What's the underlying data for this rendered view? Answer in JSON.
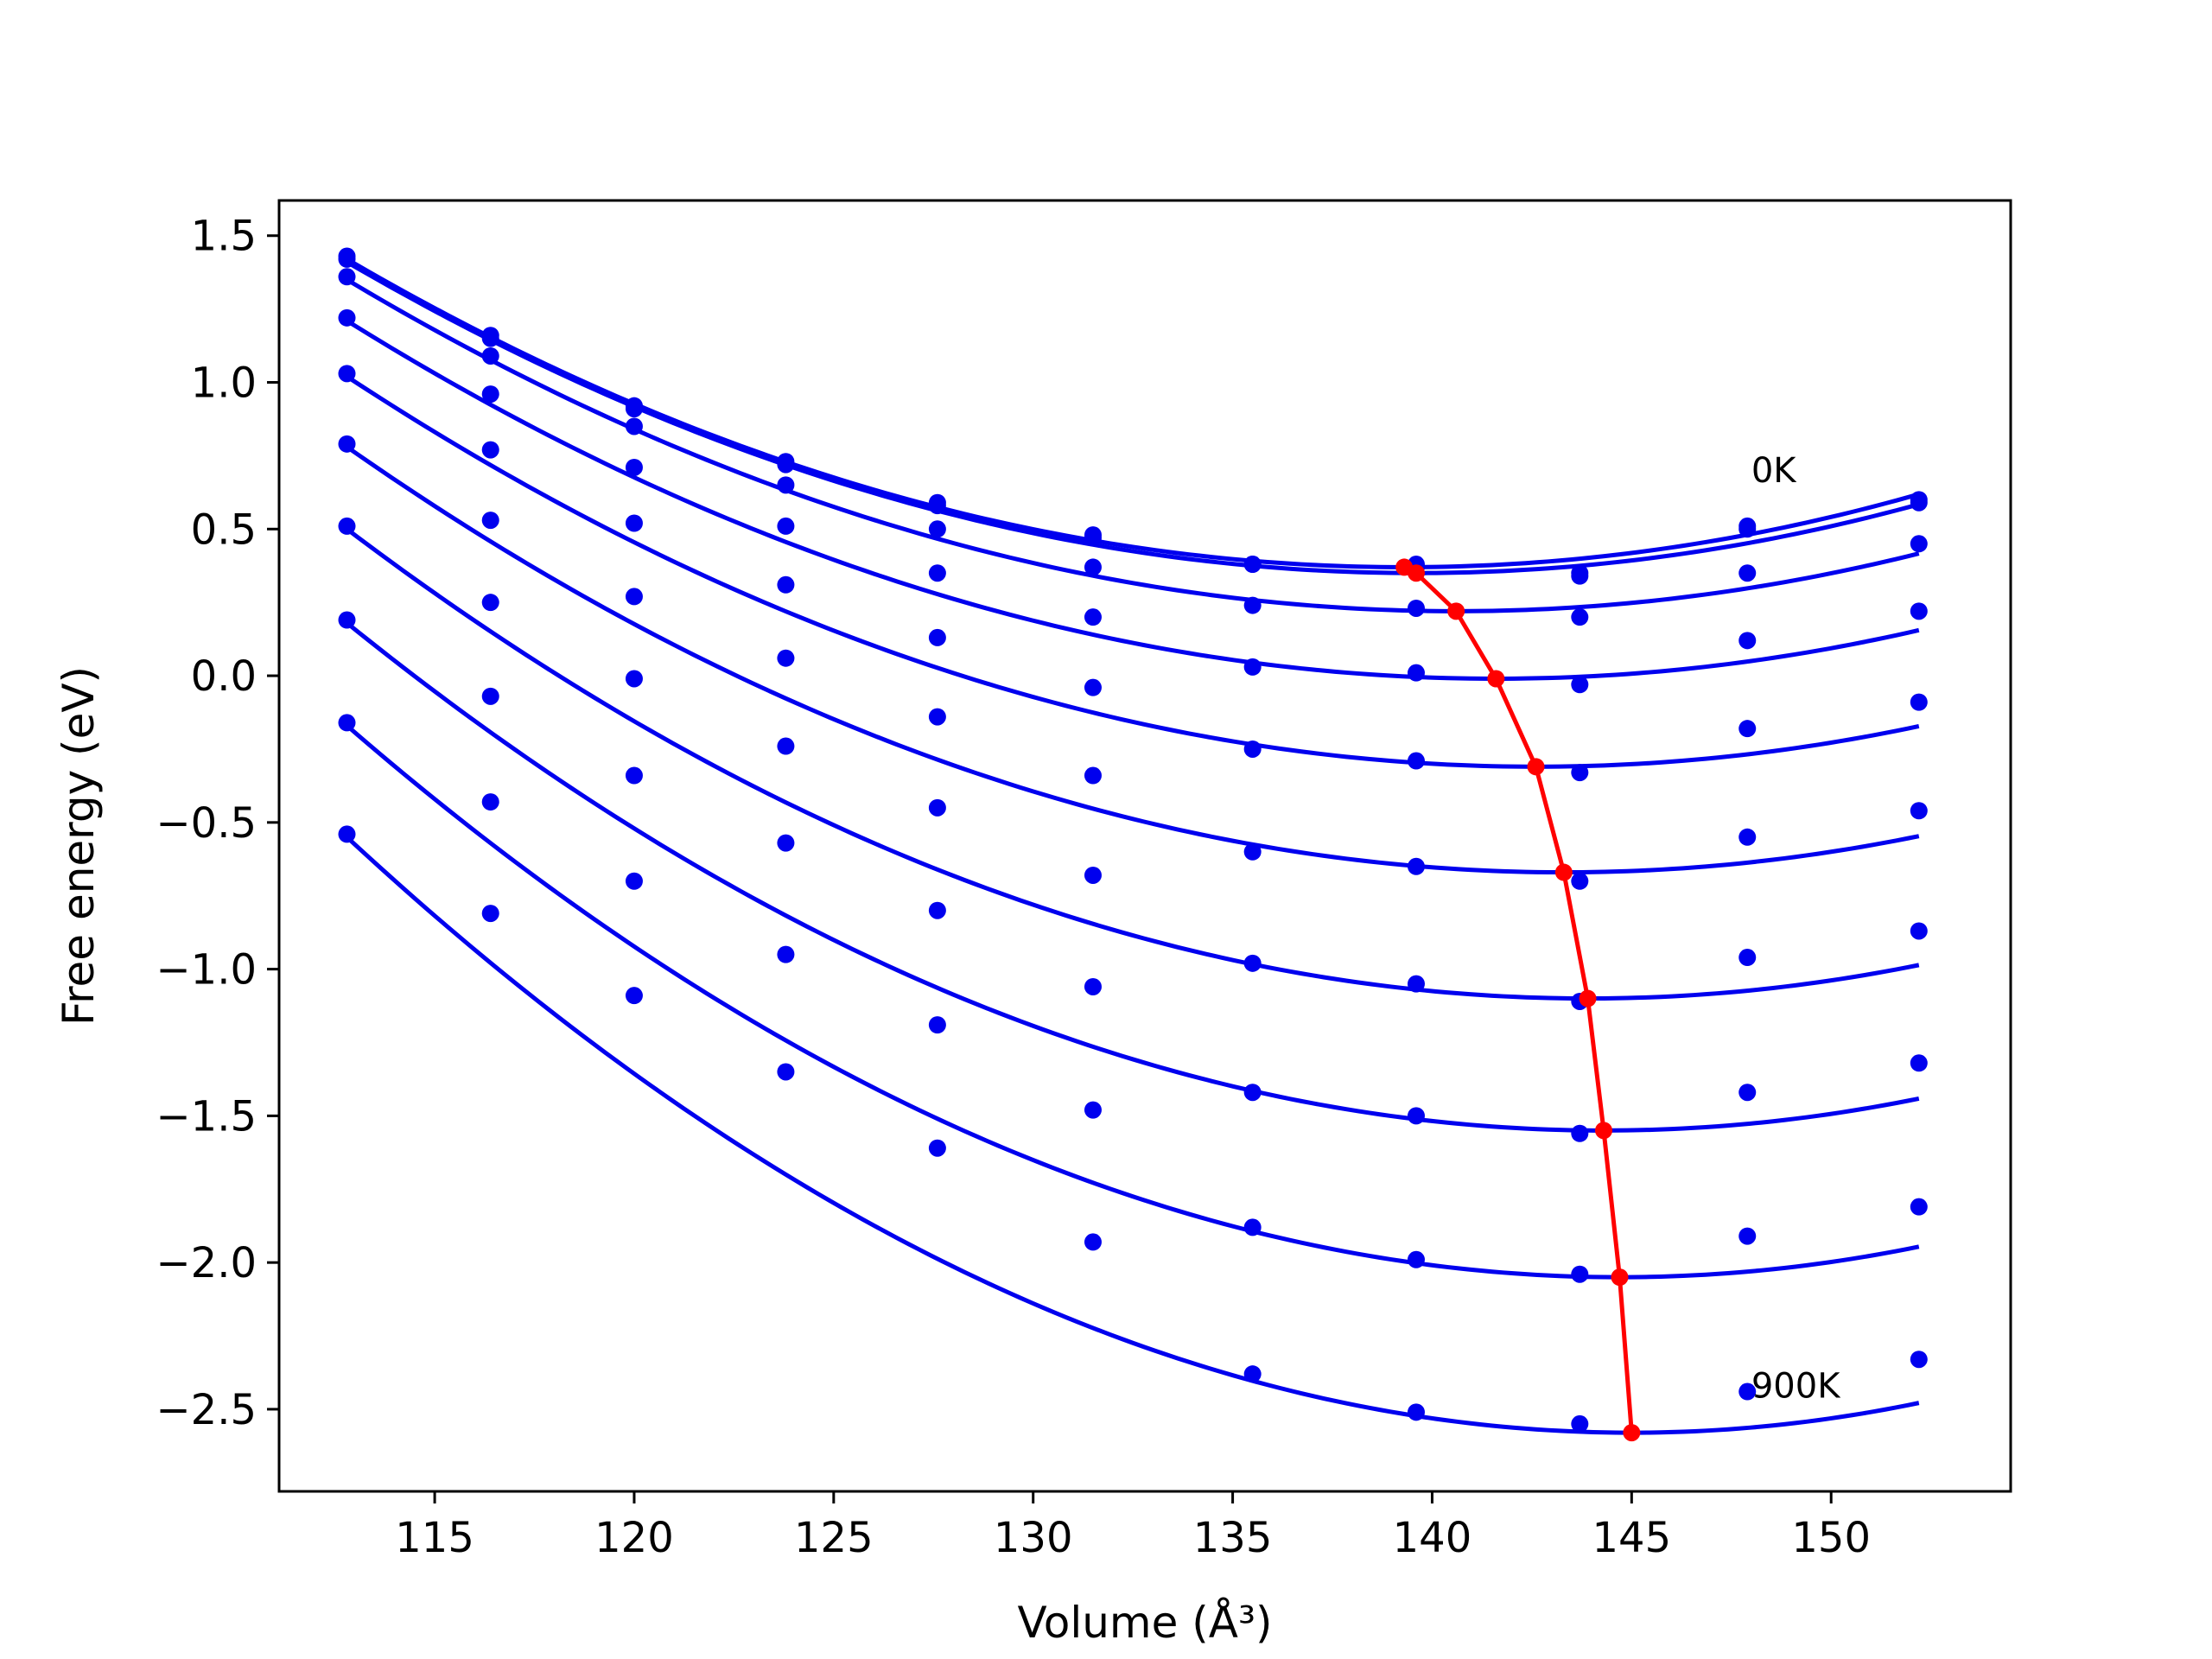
{
  "chart_data": {
    "type": "line",
    "xlabel": "Volume (Å³)",
    "ylabel": "Free energy (eV)",
    "xlim": [
      111.1,
      154.5
    ],
    "ylim": [
      -2.78,
      1.62
    ],
    "xticks": [
      "115",
      "120",
      "125",
      "130",
      "135",
      "140",
      "145",
      "150"
    ],
    "yticks": [
      "1.5",
      "1.0",
      "0.5",
      "0.0",
      "−0.5",
      "−1.0",
      "−1.5",
      "−2.0",
      "−2.5"
    ],
    "grid": false,
    "annotations": [
      {
        "text": "0K",
        "x": 148.0,
        "y": 0.66
      },
      {
        "text": "900K",
        "x": 148.0,
        "y": -2.46
      }
    ],
    "colors": {
      "fit": "#0000ee",
      "points": "#0000ee",
      "minima": "#ff0000"
    },
    "x_points": [
      112.8,
      116.4,
      120.0,
      123.8,
      127.6,
      131.5,
      135.5,
      139.6,
      143.7,
      147.9,
      152.2
    ],
    "temperature_curves": [
      {
        "points": [
          1.43,
          1.16,
          0.92,
          0.73,
          0.59,
          0.48,
          0.38,
          0.38,
          0.34,
          0.51,
          0.6
        ],
        "fit_start": 1.42,
        "fit_min_x": 139.3,
        "fit_min_y": 0.37,
        "fit_end": 0.61
      },
      {
        "points": [
          1.42,
          1.15,
          0.91,
          0.72,
          0.58,
          0.47,
          0.38,
          0.37,
          0.35,
          0.5,
          0.59
        ],
        "fit_start": 1.41,
        "fit_min_x": 139.6,
        "fit_min_y": 0.35,
        "fit_end": 0.6
      },
      {
        "points": [
          1.36,
          1.09,
          0.85,
          0.65,
          0.5,
          0.37,
          0.24,
          0.23,
          0.2,
          0.35,
          0.45
        ],
        "fit_start": 1.35,
        "fit_min_x": 140.6,
        "fit_min_y": 0.22,
        "fit_end": 0.45
      },
      {
        "points": [
          1.22,
          0.96,
          0.71,
          0.51,
          0.35,
          0.2,
          0.03,
          0.01,
          -0.03,
          0.12,
          0.22
        ],
        "fit_start": 1.21,
        "fit_min_x": 141.6,
        "fit_min_y": -0.01,
        "fit_end": 0.22
      },
      {
        "points": [
          1.03,
          0.77,
          0.52,
          0.31,
          0.13,
          -0.04,
          -0.25,
          -0.29,
          -0.33,
          -0.18,
          -0.09
        ],
        "fit_start": 1.02,
        "fit_min_x": 142.6,
        "fit_min_y": -0.31,
        "fit_end": -0.07
      },
      {
        "points": [
          0.79,
          0.53,
          0.27,
          0.06,
          -0.14,
          -0.34,
          -0.6,
          -0.65,
          -0.7,
          -0.55,
          -0.46
        ],
        "fit_start": 0.78,
        "fit_min_x": 143.3,
        "fit_min_y": -0.67,
        "fit_end": -0.43
      },
      {
        "points": [
          0.51,
          0.25,
          -0.01,
          -0.24,
          -0.45,
          -0.68,
          -0.98,
          -1.05,
          -1.11,
          -0.96,
          -0.87
        ],
        "fit_start": 0.5,
        "fit_min_x": 143.9,
        "fit_min_y": -1.1,
        "fit_end": -0.84
      },
      {
        "points": [
          0.19,
          -0.07,
          -0.34,
          -0.57,
          -0.8,
          -1.06,
          -1.42,
          -1.5,
          -1.56,
          -1.42,
          -1.32
        ],
        "fit_start": 0.18,
        "fit_min_x": 144.3,
        "fit_min_y": -1.55,
        "fit_end": -1.28
      },
      {
        "points": [
          -0.16,
          -0.43,
          -0.7,
          -0.95,
          -1.19,
          -1.48,
          -1.88,
          -1.99,
          -2.04,
          -1.91,
          -1.81
        ],
        "fit_start": -0.17,
        "fit_min_x": 144.7,
        "fit_min_y": -2.05,
        "fit_end": -1.77
      },
      {
        "points": [
          -0.54,
          -0.81,
          -1.09,
          -1.35,
          -1.61,
          -1.93,
          -2.38,
          -2.51,
          -2.55,
          -2.44,
          -2.33
        ],
        "fit_start": -0.55,
        "fit_min_x": 145.0,
        "fit_min_y": -2.58,
        "fit_end": -2.27
      }
    ],
    "minima_series": {
      "x": [
        139.3,
        139.6,
        140.6,
        141.6,
        142.6,
        143.3,
        143.9,
        144.3,
        144.7,
        145.0
      ],
      "y": [
        0.37,
        0.35,
        0.22,
        -0.01,
        -0.31,
        -0.67,
        -1.1,
        -1.55,
        -2.05,
        -2.58
      ]
    }
  }
}
